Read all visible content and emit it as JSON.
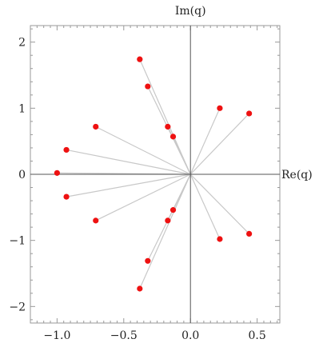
{
  "chart_data": {
    "type": "scatter",
    "title": "",
    "xlabel": "Re(q)",
    "ylabel": "Im(q)",
    "xlim": [
      -1.2,
      0.67
    ],
    "ylim": [
      -2.25,
      2.25
    ],
    "x_ticks": [
      -1.0,
      -0.5,
      0.0,
      0.5
    ],
    "x_tick_labels": [
      "−1.0",
      "−0.5",
      "0.0",
      "0.5"
    ],
    "y_ticks": [
      -2,
      -1,
      0,
      1,
      2
    ],
    "y_tick_labels": [
      "−2",
      "−1",
      "0",
      "1",
      "2"
    ],
    "grid": false,
    "rays_from_origin": true,
    "colors": {
      "point": "#ee1111",
      "ray": "#c8c8c8",
      "axis": "#555555",
      "frame": "#999999"
    },
    "points": [
      {
        "x": -0.38,
        "y": 1.74
      },
      {
        "x": -0.32,
        "y": 1.33
      },
      {
        "x": 0.22,
        "y": 1.0
      },
      {
        "x": 0.44,
        "y": 0.92
      },
      {
        "x": -0.71,
        "y": 0.72
      },
      {
        "x": -0.17,
        "y": 0.72
      },
      {
        "x": -0.13,
        "y": 0.57
      },
      {
        "x": -0.93,
        "y": 0.37
      },
      {
        "x": -1.0,
        "y": 0.02
      },
      {
        "x": -0.93,
        "y": -0.34
      },
      {
        "x": -0.13,
        "y": -0.54
      },
      {
        "x": -0.17,
        "y": -0.7
      },
      {
        "x": -0.71,
        "y": -0.7
      },
      {
        "x": 0.22,
        "y": -0.98
      },
      {
        "x": 0.44,
        "y": -0.9
      },
      {
        "x": -0.32,
        "y": -1.31
      },
      {
        "x": -0.38,
        "y": -1.73
      }
    ]
  }
}
